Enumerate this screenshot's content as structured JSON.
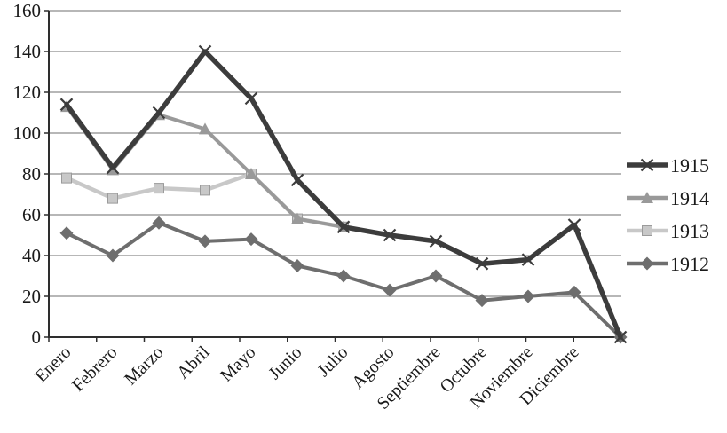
{
  "chart_data": {
    "type": "line",
    "title": "",
    "xlabel": "",
    "ylabel": "",
    "categories": [
      "Enero",
      "Febrero",
      "Marzo",
      "Abril",
      "Mayo",
      "Junio",
      "Julio",
      "Agosto",
      "Septiembre",
      "Octubre",
      "Noviembre",
      "Diciembre",
      ""
    ],
    "series": [
      {
        "name": "1915",
        "marker": "x",
        "color": "#3c3c3c",
        "line_width": 5.5,
        "values": [
          114,
          83,
          110,
          140,
          117,
          77,
          54,
          50,
          47,
          36,
          38,
          55,
          0
        ]
      },
      {
        "name": "1914",
        "marker": "triangle",
        "color": "#999999",
        "line_width": 4,
        "values": [
          113,
          82,
          109,
          102,
          80,
          58,
          54,
          null,
          null,
          null,
          null,
          null,
          null
        ]
      },
      {
        "name": "1913",
        "marker": "square",
        "color": "#c8c8c8",
        "line_width": 4.5,
        "values": [
          78,
          68,
          73,
          72,
          80,
          58,
          54,
          null,
          null,
          null,
          null,
          null,
          null
        ]
      },
      {
        "name": "1912",
        "marker": "diamond",
        "color": "#6e6e6e",
        "line_width": 4,
        "values": [
          51,
          40,
          56,
          47,
          48,
          35,
          30,
          23,
          30,
          18,
          20,
          22,
          0
        ]
      }
    ],
    "ylim": [
      0,
      160
    ],
    "yticks": [
      0,
      20,
      40,
      60,
      80,
      100,
      120,
      140,
      160
    ],
    "grid": true,
    "legend_position": "right",
    "legend_labels": [
      "1915",
      "1914",
      "1913",
      "1912"
    ],
    "colors": {
      "axis": "#2e2e2e",
      "gridline": "#8c8c8c",
      "background": "#ffffff",
      "text": "#1a1a1a"
    }
  }
}
